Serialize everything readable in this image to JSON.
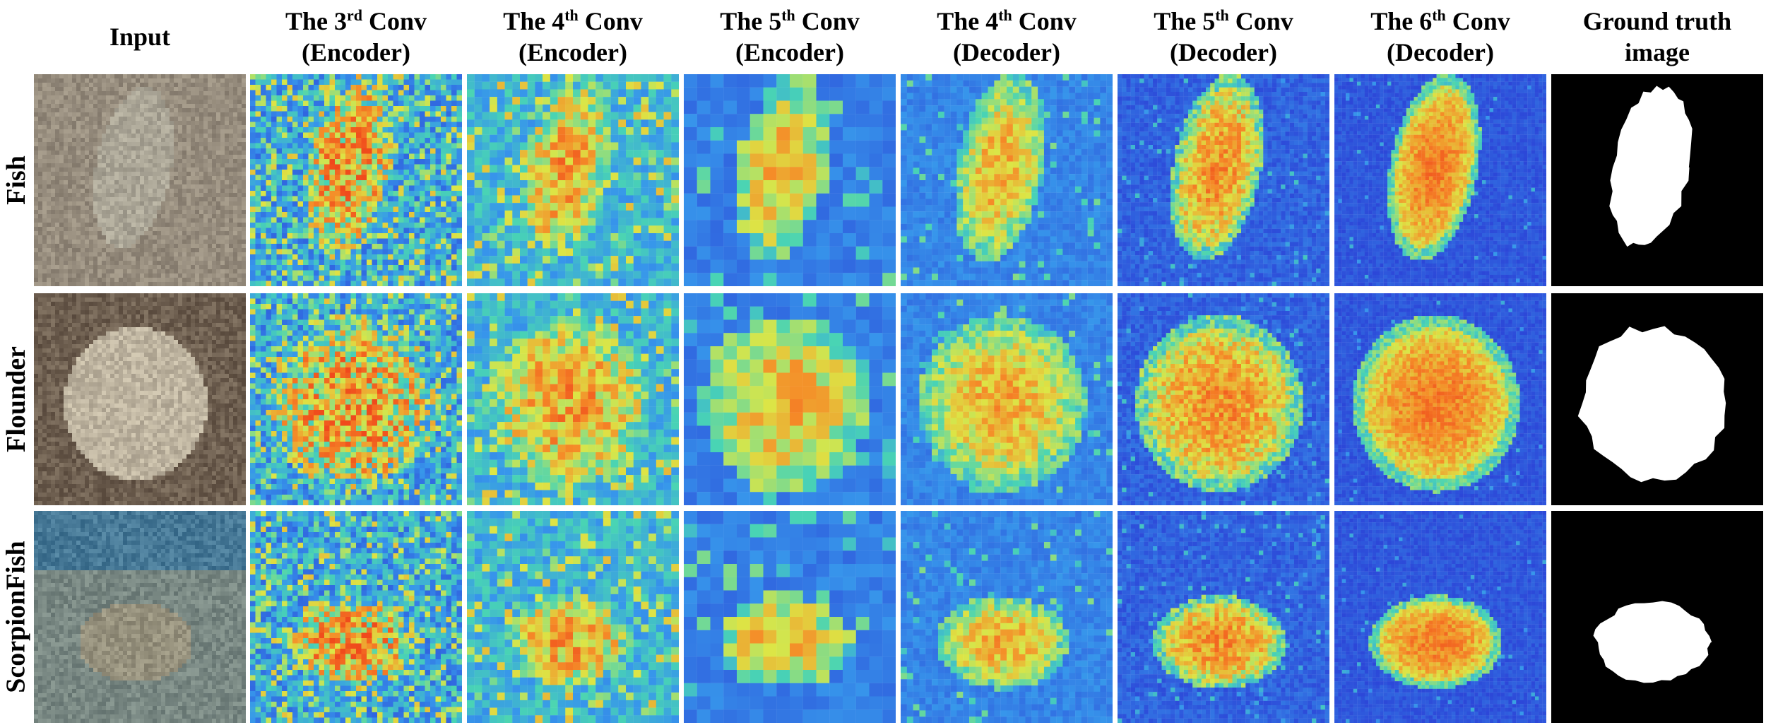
{
  "headers": [
    {
      "lines": [
        {
          "pre": "Input",
          "sup": "",
          "post": ""
        }
      ]
    },
    {
      "lines": [
        {
          "pre": "The 3",
          "sup": "rd",
          "post": " Conv"
        },
        {
          "pre": "(Encoder)",
          "sup": "",
          "post": ""
        }
      ]
    },
    {
      "lines": [
        {
          "pre": "The 4",
          "sup": "th",
          "post": " Conv"
        },
        {
          "pre": "(Encoder)",
          "sup": "",
          "post": ""
        }
      ]
    },
    {
      "lines": [
        {
          "pre": "The 5",
          "sup": "th",
          "post": " Conv"
        },
        {
          "pre": "(Encoder)",
          "sup": "",
          "post": ""
        }
      ]
    },
    {
      "lines": [
        {
          "pre": "The 4",
          "sup": "th",
          "post": " Conv"
        },
        {
          "pre": "(Decoder)",
          "sup": "",
          "post": ""
        }
      ]
    },
    {
      "lines": [
        {
          "pre": "The 5",
          "sup": "th",
          "post": " Conv"
        },
        {
          "pre": "(Decoder)",
          "sup": "",
          "post": ""
        }
      ]
    },
    {
      "lines": [
        {
          "pre": "The 6",
          "sup": "th",
          "post": " Conv"
        },
        {
          "pre": "(Decoder)",
          "sup": "",
          "post": ""
        }
      ]
    },
    {
      "lines": [
        {
          "pre": "Ground truth",
          "sup": "",
          "post": ""
        },
        {
          "pre": "image",
          "sup": "",
          "post": ""
        }
      ]
    }
  ],
  "rows": [
    {
      "label": "Fish"
    },
    {
      "label": "Flounder"
    },
    {
      "label": "ScorpionFish"
    }
  ],
  "colors": {
    "heat_low": "#2b3fd6",
    "heat_mid": "#49d4b4",
    "heat_high": "#f04a1c",
    "mask_bg": "#000000",
    "mask_fg": "#ffffff"
  }
}
